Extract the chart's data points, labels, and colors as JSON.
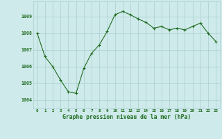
{
  "x": [
    0,
    1,
    2,
    3,
    4,
    5,
    6,
    7,
    8,
    9,
    10,
    11,
    12,
    13,
    14,
    15,
    16,
    17,
    18,
    19,
    20,
    21,
    22,
    23
  ],
  "y": [
    1008.0,
    1006.6,
    1006.0,
    1005.2,
    1004.5,
    1004.4,
    1005.9,
    1006.8,
    1007.3,
    1008.1,
    1009.1,
    1009.3,
    1009.1,
    1008.85,
    1008.65,
    1008.3,
    1008.4,
    1008.2,
    1008.3,
    1008.2,
    1008.4,
    1008.6,
    1008.0,
    1007.5
  ],
  "line_color": "#1f6b1f",
  "marker": "P",
  "marker_size": 2.5,
  "bg_color": "#ceeaea",
  "grid_color": "#aacece",
  "xlabel": "Graphe pression niveau de la mer (hPa)",
  "xlabel_color": "#1f6b1f",
  "tick_color": "#1f6b1f",
  "ylim": [
    1003.5,
    1009.9
  ],
  "xlim": [
    -0.5,
    23.5
  ],
  "yticks": [
    1004,
    1005,
    1006,
    1007,
    1008,
    1009
  ],
  "xticks": [
    0,
    1,
    2,
    3,
    4,
    5,
    6,
    7,
    8,
    9,
    10,
    11,
    12,
    13,
    14,
    15,
    16,
    17,
    18,
    19,
    20,
    21,
    22,
    23
  ]
}
